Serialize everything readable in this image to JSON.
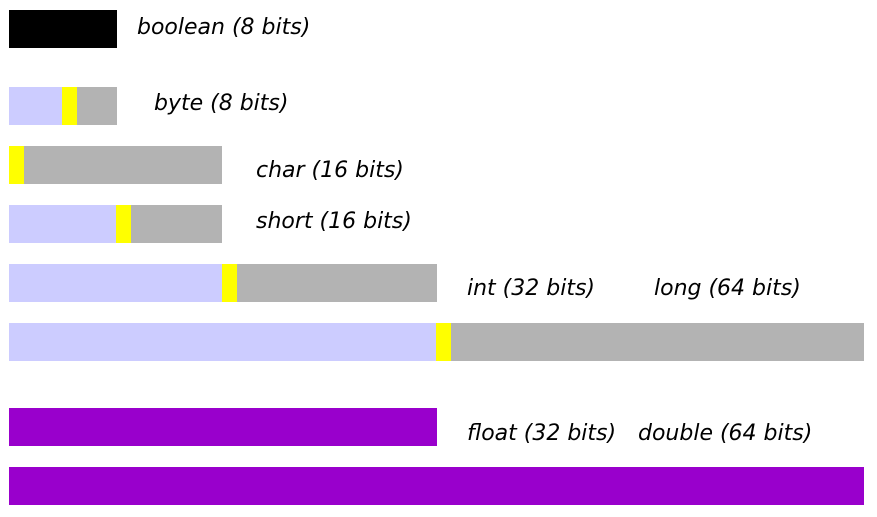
{
  "labels": {
    "boolean": "boolean (8 bits)",
    "byte": "byte (8 bits)",
    "char": "char (16 bits)",
    "short": "short (16 bits)",
    "int": "int (32 bits)",
    "long": "long (64 bits)",
    "float": "float (32 bits)",
    "double": "double (64 bits)"
  }
}
